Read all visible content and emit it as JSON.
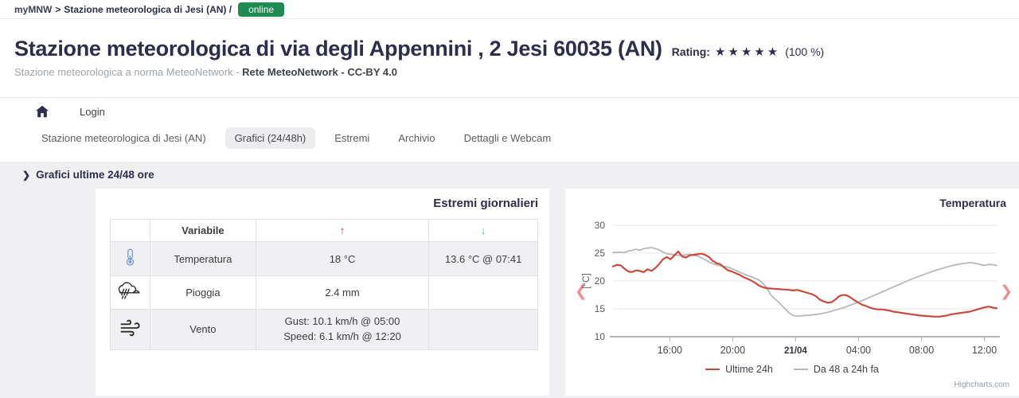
{
  "breadcrumb": {
    "app": "myMNW",
    "separator": ">",
    "station": "Stazione meteorologica di Jesi (AN) /",
    "status_badge": "online"
  },
  "header": {
    "title": "Stazione meteorologica di via degli Appennini , 2 Jesi 60035 (AN)",
    "rating_label": "Rating:",
    "rating_stars": 5,
    "rating_value": "(100 %)",
    "subtitle_muted": "Stazione meteorologica a norma MeteoNetwork - ",
    "subtitle_strong": "Rete MeteoNetwork - CC-BY 4.0"
  },
  "nav": {
    "login_label": "Login",
    "tabs": [
      {
        "label": "Stazione meteorologica di Jesi (AN)",
        "active": false
      },
      {
        "label": "Grafici (24/48h)",
        "active": true
      },
      {
        "label": "Estremi",
        "active": false
      },
      {
        "label": "Archivio",
        "active": false
      },
      {
        "label": "Dettagli e Webcam",
        "active": false
      }
    ]
  },
  "section": {
    "chevron": "❯",
    "title": "Grafici ultime 24/48 ore"
  },
  "extremes": {
    "panel_title": "Estremi giornalieri",
    "columns": {
      "variable": "Variabile",
      "up": "↑",
      "down": "↓"
    },
    "rows": [
      {
        "icon": "thermometer-icon",
        "variable": "Temperatura",
        "max": "18 °C",
        "min": "13.6 °C @ 07:41"
      },
      {
        "icon": "rain-icon",
        "variable": "Pioggia",
        "max": "2.4 mm",
        "min": ""
      },
      {
        "icon": "wind-icon",
        "variable": "Vento",
        "max_lines": [
          "Gust: 10.1 km/h @ 05:00",
          "Speed: 6.1 km/h @ 12:20"
        ],
        "min": ""
      }
    ]
  },
  "chart_data": {
    "type": "line",
    "title": "Temperatura",
    "ylabel": "[°C]",
    "ylim": [
      10,
      30
    ],
    "y_ticks": [
      10,
      15,
      20,
      25,
      30
    ],
    "grid": true,
    "legend_position": "bottom",
    "credits": "Highcharts.com",
    "x_ticks": [
      {
        "label": "16:00",
        "pos": 0.148,
        "bold": false
      },
      {
        "label": "20:00",
        "pos": 0.312,
        "bold": false
      },
      {
        "label": "21/04",
        "pos": 0.476,
        "bold": true
      },
      {
        "label": "04:00",
        "pos": 0.64,
        "bold": false
      },
      {
        "label": "08:00",
        "pos": 0.804,
        "bold": false
      },
      {
        "label": "12:00",
        "pos": 0.968,
        "bold": false
      }
    ],
    "series": [
      {
        "name": "Ultime 24h",
        "color": "#cb4a3e",
        "width": 2.2,
        "points": [
          [
            0,
            22.6
          ],
          [
            0.01,
            22.9
          ],
          [
            0.02,
            22.8
          ],
          [
            0.03,
            22.2
          ],
          [
            0.04,
            21.7
          ],
          [
            0.05,
            21.6
          ],
          [
            0.06,
            21.9
          ],
          [
            0.07,
            21.8
          ],
          [
            0.08,
            21.6
          ],
          [
            0.09,
            22.1
          ],
          [
            0.1,
            21.8
          ],
          [
            0.11,
            22.3
          ],
          [
            0.12,
            23.0
          ],
          [
            0.13,
            23.9
          ],
          [
            0.14,
            24.3
          ],
          [
            0.15,
            23.9
          ],
          [
            0.16,
            24.6
          ],
          [
            0.17,
            25.3
          ],
          [
            0.18,
            24.4
          ],
          [
            0.19,
            24.2
          ],
          [
            0.2,
            24.6
          ],
          [
            0.21,
            24.7
          ],
          [
            0.22,
            24.8
          ],
          [
            0.23,
            24.9
          ],
          [
            0.24,
            24.7
          ],
          [
            0.25,
            24.3
          ],
          [
            0.26,
            23.6
          ],
          [
            0.27,
            23.2
          ],
          [
            0.28,
            23.0
          ],
          [
            0.29,
            22.4
          ],
          [
            0.3,
            21.9
          ],
          [
            0.31,
            21.7
          ],
          [
            0.32,
            21.4
          ],
          [
            0.33,
            21.1
          ],
          [
            0.34,
            20.7
          ],
          [
            0.35,
            20.4
          ],
          [
            0.36,
            20.1
          ],
          [
            0.37,
            19.7
          ],
          [
            0.38,
            19.2
          ],
          [
            0.39,
            18.9
          ],
          [
            0.4,
            18.7
          ],
          [
            0.42,
            18.6
          ],
          [
            0.44,
            18.5
          ],
          [
            0.46,
            18.4
          ],
          [
            0.47,
            18.3
          ],
          [
            0.48,
            18.4
          ],
          [
            0.49,
            18.2
          ],
          [
            0.5,
            18.0
          ],
          [
            0.51,
            17.8
          ],
          [
            0.52,
            17.6
          ],
          [
            0.53,
            17.2
          ],
          [
            0.54,
            16.6
          ],
          [
            0.55,
            16.3
          ],
          [
            0.56,
            16.1
          ],
          [
            0.57,
            16.2
          ],
          [
            0.58,
            16.7
          ],
          [
            0.59,
            17.3
          ],
          [
            0.6,
            17.5
          ],
          [
            0.61,
            17.4
          ],
          [
            0.62,
            17.0
          ],
          [
            0.63,
            16.5
          ],
          [
            0.64,
            16.1
          ],
          [
            0.65,
            15.7
          ],
          [
            0.66,
            15.5
          ],
          [
            0.67,
            15.2
          ],
          [
            0.68,
            15.0
          ],
          [
            0.69,
            14.9
          ],
          [
            0.7,
            14.9
          ],
          [
            0.71,
            14.8
          ],
          [
            0.72,
            14.7
          ],
          [
            0.73,
            14.5
          ],
          [
            0.74,
            14.4
          ],
          [
            0.75,
            14.3
          ],
          [
            0.76,
            14.2
          ],
          [
            0.77,
            14.1
          ],
          [
            0.78,
            14.0
          ],
          [
            0.79,
            13.9
          ],
          [
            0.8,
            13.8
          ],
          [
            0.82,
            13.7
          ],
          [
            0.84,
            13.6
          ],
          [
            0.85,
            13.6
          ],
          [
            0.86,
            13.7
          ],
          [
            0.87,
            13.8
          ],
          [
            0.88,
            14.0
          ],
          [
            0.89,
            14.1
          ],
          [
            0.9,
            14.2
          ],
          [
            0.91,
            14.3
          ],
          [
            0.92,
            14.4
          ],
          [
            0.93,
            14.5
          ],
          [
            0.94,
            14.7
          ],
          [
            0.95,
            14.9
          ],
          [
            0.96,
            15.1
          ],
          [
            0.97,
            15.3
          ],
          [
            0.98,
            15.4
          ],
          [
            0.99,
            15.2
          ],
          [
            1,
            15.1
          ]
        ]
      },
      {
        "name": "Da 48 a 24h fa",
        "color": "#b9b9bb",
        "width": 1.8,
        "points": [
          [
            0,
            25.1
          ],
          [
            0.02,
            25.2
          ],
          [
            0.03,
            25.1
          ],
          [
            0.04,
            25.4
          ],
          [
            0.05,
            25.5
          ],
          [
            0.06,
            25.7
          ],
          [
            0.07,
            25.5
          ],
          [
            0.08,
            25.8
          ],
          [
            0.09,
            25.9
          ],
          [
            0.1,
            26.0
          ],
          [
            0.11,
            25.8
          ],
          [
            0.12,
            25.6
          ],
          [
            0.13,
            25.2
          ],
          [
            0.14,
            24.9
          ],
          [
            0.15,
            24.8
          ],
          [
            0.16,
            24.7
          ],
          [
            0.17,
            24.6
          ],
          [
            0.18,
            24.6
          ],
          [
            0.19,
            24.7
          ],
          [
            0.2,
            24.8
          ],
          [
            0.21,
            24.6
          ],
          [
            0.22,
            24.5
          ],
          [
            0.23,
            24.2
          ],
          [
            0.24,
            23.8
          ],
          [
            0.25,
            23.4
          ],
          [
            0.26,
            23.1
          ],
          [
            0.27,
            22.9
          ],
          [
            0.28,
            22.7
          ],
          [
            0.29,
            22.6
          ],
          [
            0.3,
            22.5
          ],
          [
            0.31,
            22.2
          ],
          [
            0.32,
            21.9
          ],
          [
            0.33,
            21.6
          ],
          [
            0.34,
            21.3
          ],
          [
            0.35,
            21.0
          ],
          [
            0.36,
            20.8
          ],
          [
            0.37,
            20.5
          ],
          [
            0.38,
            20.2
          ],
          [
            0.39,
            19.6
          ],
          [
            0.4,
            18.9
          ],
          [
            0.41,
            17.6
          ],
          [
            0.42,
            16.9
          ],
          [
            0.43,
            16.3
          ],
          [
            0.44,
            15.6
          ],
          [
            0.45,
            14.9
          ],
          [
            0.46,
            14.2
          ],
          [
            0.47,
            13.8
          ],
          [
            0.48,
            13.7
          ],
          [
            0.5,
            13.8
          ],
          [
            0.52,
            13.9
          ],
          [
            0.54,
            14.1
          ],
          [
            0.56,
            14.4
          ],
          [
            0.58,
            14.8
          ],
          [
            0.6,
            15.2
          ],
          [
            0.62,
            15.7
          ],
          [
            0.64,
            16.2
          ],
          [
            0.66,
            16.8
          ],
          [
            0.68,
            17.4
          ],
          [
            0.7,
            18.0
          ],
          [
            0.72,
            18.6
          ],
          [
            0.74,
            19.2
          ],
          [
            0.76,
            19.8
          ],
          [
            0.78,
            20.4
          ],
          [
            0.8,
            20.9
          ],
          [
            0.82,
            21.4
          ],
          [
            0.84,
            21.9
          ],
          [
            0.86,
            22.3
          ],
          [
            0.88,
            22.7
          ],
          [
            0.9,
            23.0
          ],
          [
            0.92,
            23.2
          ],
          [
            0.93,
            23.3
          ],
          [
            0.95,
            23.1
          ],
          [
            0.96,
            22.9
          ],
          [
            0.97,
            22.8
          ],
          [
            0.98,
            23.0
          ],
          [
            1,
            22.8
          ]
        ]
      }
    ]
  },
  "colors": {
    "badge_green": "#1e8b52",
    "navy_text": "#2e2d4d",
    "arrow_up_red": "#cf3c3c",
    "arrow_down_cyan": "#24b8dd",
    "chevron_pink": "#ee8d92",
    "section_bg": "#f0f0f2"
  }
}
